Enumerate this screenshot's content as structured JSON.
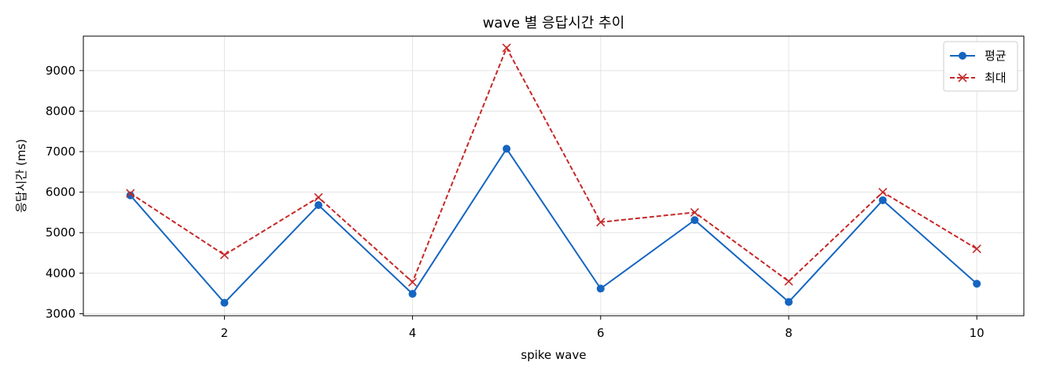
{
  "chart_data": {
    "type": "line",
    "title": "wave 별 응답시간 추이",
    "xlabel": "spike wave",
    "ylabel": "응답시간 (ms)",
    "x": [
      1,
      2,
      3,
      4,
      5,
      6,
      7,
      8,
      9,
      10
    ],
    "xlim": [
      0.5,
      10.5
    ],
    "ylim": [
      2950,
      9850
    ],
    "xticks": [
      2,
      4,
      6,
      8,
      10
    ],
    "yticks": [
      3000,
      4000,
      5000,
      6000,
      7000,
      8000,
      9000
    ],
    "grid": true,
    "legend_position": "top-right",
    "series": [
      {
        "name": "평균",
        "values": [
          5920,
          3270,
          5680,
          3490,
          7070,
          3620,
          5310,
          3290,
          5800,
          3740
        ],
        "color": "#1565c0",
        "marker": "circle",
        "line_style": "solid"
      },
      {
        "name": "최대",
        "values": [
          5970,
          4450,
          5870,
          3780,
          9560,
          5260,
          5500,
          3800,
          6000,
          4600
        ],
        "color": "#c62828",
        "marker": "x",
        "line_style": "dashed"
      }
    ]
  }
}
